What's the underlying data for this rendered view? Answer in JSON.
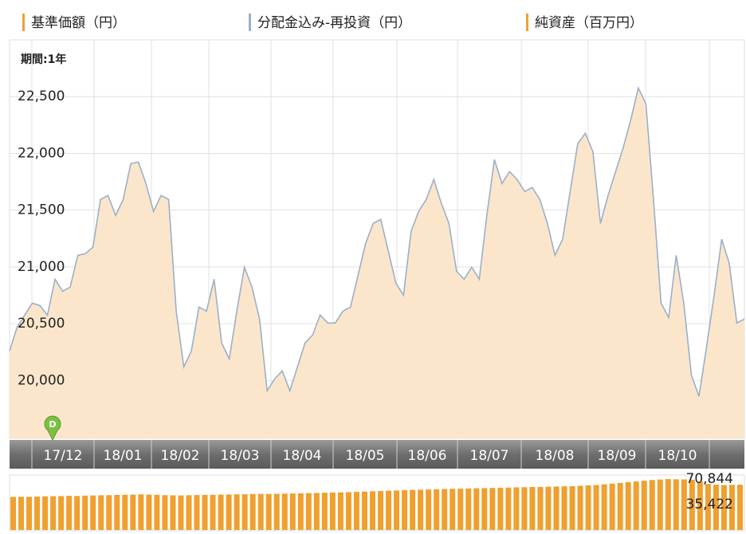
{
  "chart_data": {
    "type": "area-line-volume",
    "period_label": "期間:1年",
    "marker_label": "D",
    "x_labels": [
      "17/12",
      "18/01",
      "18/02",
      "18/03",
      "18/04",
      "18/05",
      "18/06",
      "18/07",
      "18/08",
      "18/09",
      "18/10"
    ],
    "ylim": [
      19490,
      23000
    ],
    "yticks": [
      {
        "value": 20000,
        "label": "20,000"
      },
      {
        "value": 20500,
        "label": "20,500"
      },
      {
        "value": 21000,
        "label": "21,000"
      },
      {
        "value": 21500,
        "label": "21,500"
      },
      {
        "value": 22000,
        "label": "22,000"
      },
      {
        "value": 22500,
        "label": "22,500"
      }
    ],
    "y2lim": [
      0,
      72000
    ],
    "y2ticks": [
      {
        "value": 70844,
        "label": "70,844"
      },
      {
        "value": 35422,
        "label": "35,422"
      }
    ],
    "grid": true,
    "series": [
      {
        "name": "基準価額（円）",
        "color": "#f0a030",
        "fill": "#fbe6cc",
        "values": [
          20260,
          20470,
          20576,
          20681,
          20660,
          20576,
          20892,
          20786,
          20822,
          21102,
          21117,
          21173,
          21594,
          21629,
          21454,
          21594,
          21910,
          21924,
          21734,
          21489,
          21629,
          21594,
          20611,
          20119,
          20260,
          20646,
          20611,
          20892,
          20330,
          20190,
          20611,
          20997,
          20822,
          20541,
          19909,
          20014,
          20084,
          19909,
          20119,
          20330,
          20400,
          20576,
          20506,
          20506,
          20611,
          20646,
          20927,
          21208,
          21383,
          21418,
          21138,
          20857,
          20751,
          21313,
          21489,
          21594,
          21770,
          21559,
          21383,
          20962,
          20892,
          20997,
          20892,
          21454,
          21945,
          21734,
          21840,
          21770,
          21664,
          21699,
          21594,
          21383,
          21102,
          21243,
          21664,
          22085,
          22177,
          22015,
          21383,
          21629,
          21840,
          22050,
          22296,
          22577,
          22437,
          21594,
          20681,
          20555,
          21102,
          20681,
          20049,
          19860,
          20295,
          20751,
          21243,
          21032,
          20506,
          20541
        ]
      },
      {
        "name": "分配金込み-再投資（円）",
        "color": "#9ab0c8",
        "values": [
          20260,
          20470,
          20576,
          20681,
          20660,
          20576,
          20892,
          20786,
          20822,
          21102,
          21117,
          21173,
          21594,
          21629,
          21454,
          21594,
          21910,
          21924,
          21734,
          21489,
          21629,
          21594,
          20611,
          20119,
          20260,
          20646,
          20611,
          20892,
          20330,
          20190,
          20611,
          20997,
          20822,
          20541,
          19909,
          20014,
          20084,
          19909,
          20119,
          20330,
          20400,
          20576,
          20506,
          20506,
          20611,
          20646,
          20927,
          21208,
          21383,
          21418,
          21138,
          20857,
          20751,
          21313,
          21489,
          21594,
          21770,
          21559,
          21383,
          20962,
          20892,
          20997,
          20892,
          21454,
          21945,
          21734,
          21840,
          21770,
          21664,
          21699,
          21594,
          21383,
          21102,
          21243,
          21664,
          22085,
          22177,
          22015,
          21383,
          21629,
          21840,
          22050,
          22296,
          22577,
          22437,
          21594,
          20681,
          20555,
          21102,
          20681,
          20049,
          19860,
          20295,
          20751,
          21243,
          21032,
          20506,
          20541
        ]
      },
      {
        "name": "純資産（百万円）",
        "color": "#f0a030",
        "axis": "y2",
        "values": [
          46000,
          46200,
          46100,
          46500,
          46800,
          47000,
          47200,
          47500,
          47300,
          47800,
          48000,
          48300,
          48500,
          48800,
          49000,
          49200,
          49500,
          49300,
          49000,
          48500,
          48200,
          48000,
          48300,
          48600,
          48800,
          49000,
          49200,
          49400,
          49600,
          49800,
          50000,
          50200,
          50100,
          50400,
          50600,
          50800,
          51000,
          51300,
          51500,
          51800,
          52000,
          52300,
          52600,
          53000,
          53400,
          53800,
          54200,
          54600,
          55000,
          55400,
          55800,
          56000,
          56300,
          56600,
          57000,
          57300,
          57500,
          57800,
          58000,
          58200,
          58500,
          58800,
          59000,
          59300,
          59500,
          59800,
          60000,
          60200,
          60500,
          60800,
          61000,
          61500,
          62000,
          62500,
          63500,
          64500,
          65500,
          66500,
          67500,
          68500,
          69500,
          70200,
          70844,
          70500,
          70300,
          70000,
          67000,
          64000,
          63000,
          62500,
          62800,
          63000
        ]
      }
    ]
  }
}
